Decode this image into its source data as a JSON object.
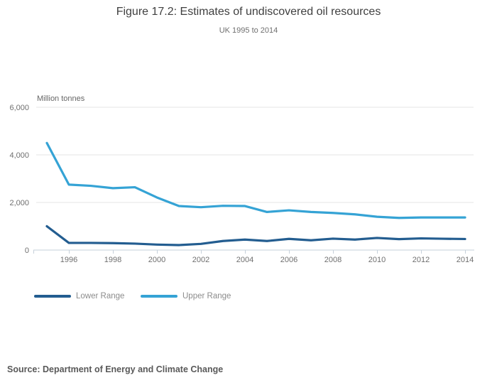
{
  "chart_data": {
    "type": "line",
    "title": "Figure 17.2: Estimates of undiscovered oil resources",
    "subtitle": "UK 1995 to 2014",
    "ylabel": "Million tonnes",
    "xlabel": "",
    "ylim": [
      0,
      6000
    ],
    "grid": "horizontal",
    "legend_position": "bottom-left",
    "x": [
      1995,
      1996,
      1997,
      1998,
      1999,
      2000,
      2001,
      2002,
      2003,
      2004,
      2005,
      2006,
      2007,
      2008,
      2009,
      2010,
      2011,
      2012,
      2013,
      2014
    ],
    "series": [
      {
        "name": "Lower Range",
        "color": "#235d90",
        "values": [
          1000,
          300,
          300,
          290,
          270,
          230,
          210,
          260,
          380,
          440,
          380,
          470,
          410,
          480,
          440,
          510,
          460,
          490,
          475,
          465
        ]
      },
      {
        "name": "Upper Range",
        "color": "#35a3d5",
        "values": [
          4500,
          2750,
          2700,
          2600,
          2640,
          2210,
          1850,
          1800,
          1860,
          1850,
          1600,
          1670,
          1600,
          1560,
          1500,
          1400,
          1350,
          1370,
          1370,
          1370
        ]
      }
    ],
    "yticks": [
      {
        "value": 0,
        "label": "0"
      },
      {
        "value": 2000,
        "label": "2,000"
      },
      {
        "value": 4000,
        "label": "4,000"
      },
      {
        "value": 6000,
        "label": "6,000"
      }
    ],
    "xticks": [
      {
        "value": 1996,
        "label": "1996"
      },
      {
        "value": 1998,
        "label": "1998"
      },
      {
        "value": 2000,
        "label": "2000"
      },
      {
        "value": 2002,
        "label": "2002"
      },
      {
        "value": 2004,
        "label": "2004"
      },
      {
        "value": 2006,
        "label": "2006"
      },
      {
        "value": 2008,
        "label": "2008"
      },
      {
        "value": 2010,
        "label": "2010"
      },
      {
        "value": 2012,
        "label": "2012"
      },
      {
        "value": 2014,
        "label": "2014"
      }
    ]
  },
  "footer": {
    "source": "Source: Department of Energy and Climate Change"
  }
}
